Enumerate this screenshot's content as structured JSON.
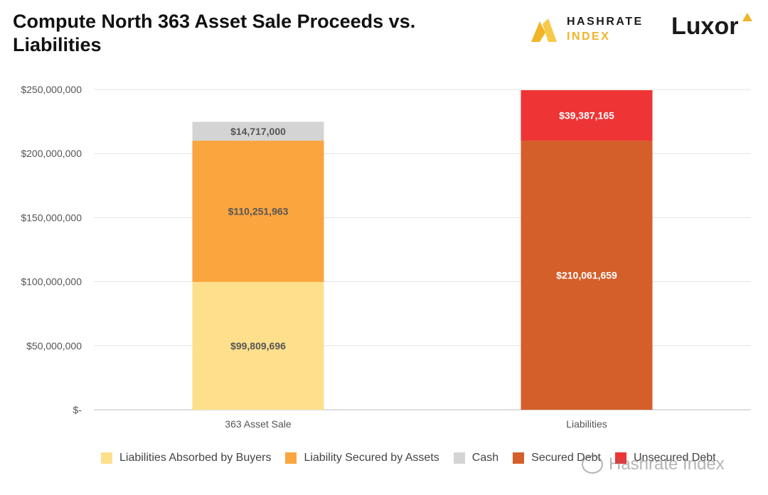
{
  "header": {
    "title": "Compute North 363 Asset Sale Proceeds vs. Liabilities",
    "logo_hashrate_line1": "HASHRATE",
    "logo_hashrate_line2": "INDEX",
    "logo_luxor": "Luxor"
  },
  "colors": {
    "absorbed": "#fedf8c",
    "secured_assets": "#fba53f",
    "cash": "#d4d4d4",
    "secured_debt": "#d45f2b",
    "unsecured_debt": "#ee3435",
    "grid": "#e3e3e3",
    "axis_text": "#555555",
    "label_dark": "#555555",
    "label_light": "#ffffff"
  },
  "chart_data": {
    "type": "bar",
    "stacked": true,
    "title": "Compute North 363 Asset Sale Proceeds vs. Liabilities",
    "xlabel": "",
    "ylabel": "",
    "ylim": [
      0,
      250000000
    ],
    "yticks": [
      0,
      50000000,
      100000000,
      150000000,
      200000000,
      250000000
    ],
    "ytick_labels": [
      "$-",
      "$50,000,000",
      "$100,000,000",
      "$150,000,000",
      "$200,000,000",
      "$250,000,000"
    ],
    "categories": [
      "363 Asset Sale",
      "Liabilities"
    ],
    "series": [
      {
        "name": "Liabilities Absorbed by Buyers",
        "color_key": "absorbed",
        "values": [
          99809696,
          0
        ],
        "labels": [
          "$99,809,696",
          ""
        ],
        "label_style": "dark"
      },
      {
        "name": "Liability Secured by Assets",
        "color_key": "secured_assets",
        "values": [
          110251963,
          0
        ],
        "labels": [
          "$110,251,963",
          ""
        ],
        "label_style": "dark"
      },
      {
        "name": "Cash",
        "color_key": "cash",
        "values": [
          14717000,
          0
        ],
        "labels": [
          "$14,717,000",
          ""
        ],
        "label_style": "dark"
      },
      {
        "name": "Secured Debt",
        "color_key": "secured_debt",
        "values": [
          0,
          210061659
        ],
        "labels": [
          "",
          "$210,061,659"
        ],
        "label_style": "light"
      },
      {
        "name": "Unsecured Debt",
        "color_key": "unsecured_debt",
        "values": [
          0,
          39387165
        ],
        "labels": [
          "",
          "$39,387,165"
        ],
        "label_style": "light"
      }
    ],
    "grid": true,
    "legend_position": "bottom"
  },
  "watermark": "Hashrate Index"
}
